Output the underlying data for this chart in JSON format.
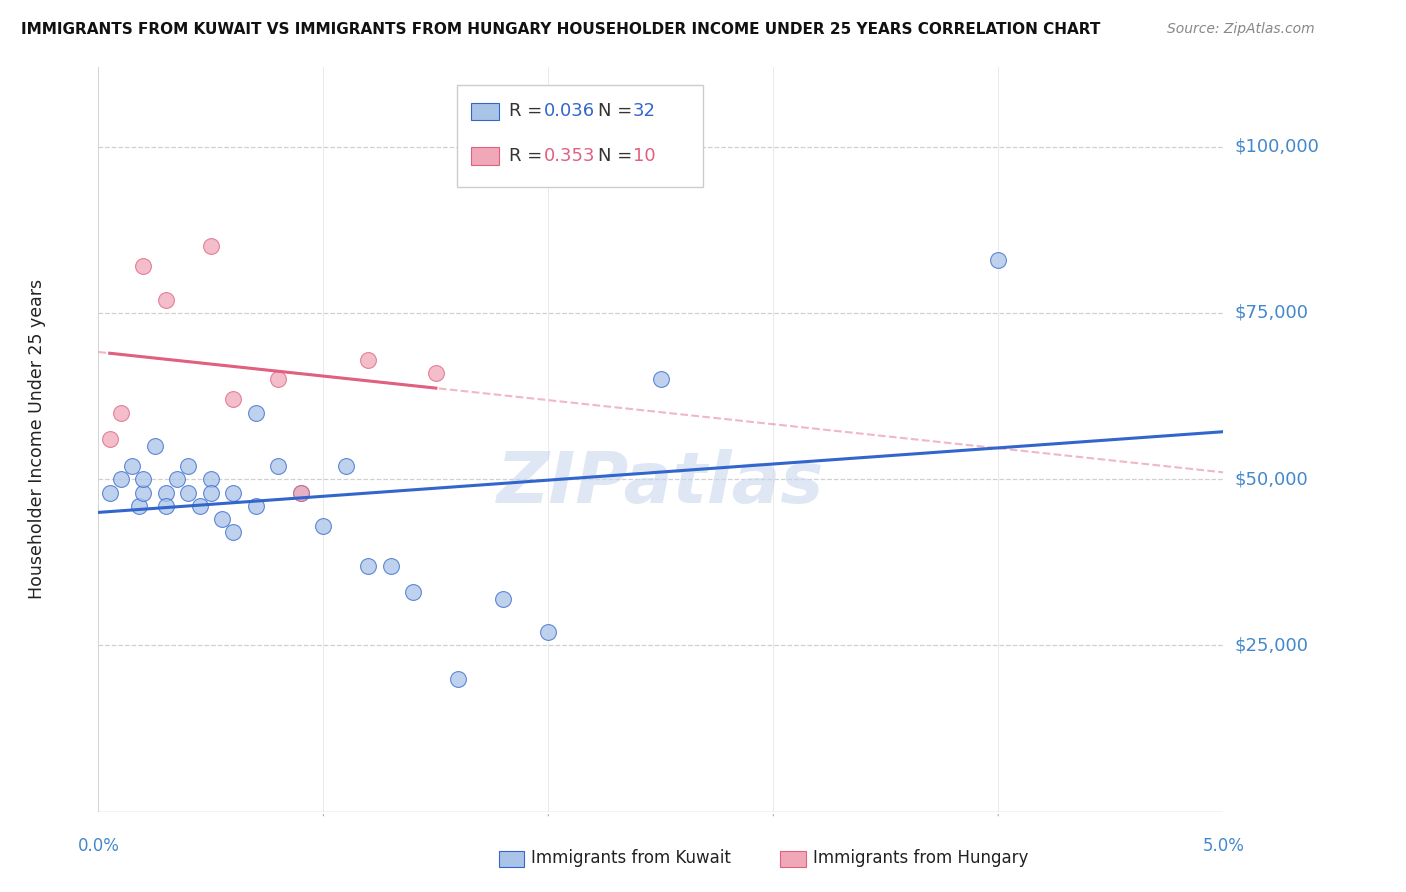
{
  "title": "IMMIGRANTS FROM KUWAIT VS IMMIGRANTS FROM HUNGARY HOUSEHOLDER INCOME UNDER 25 YEARS CORRELATION CHART",
  "source": "Source: ZipAtlas.com",
  "ylabel": "Householder Income Under 25 years",
  "xlim": [
    0.0,
    0.05
  ],
  "ylim": [
    0,
    112000
  ],
  "background_color": "#ffffff",
  "kuwait_color": "#aac4e8",
  "hungary_color": "#f0a8b8",
  "kuwait_line_color": "#3366cc",
  "hungary_line_color": "#e06080",
  "R_kuwait": 0.036,
  "N_kuwait": 32,
  "R_hungary": 0.353,
  "N_hungary": 10,
  "kuwait_scatter_x": [
    0.0005,
    0.001,
    0.0015,
    0.0018,
    0.002,
    0.002,
    0.0025,
    0.003,
    0.003,
    0.0035,
    0.004,
    0.004,
    0.0045,
    0.005,
    0.005,
    0.0055,
    0.006,
    0.006,
    0.007,
    0.007,
    0.008,
    0.009,
    0.01,
    0.011,
    0.012,
    0.013,
    0.014,
    0.016,
    0.018,
    0.02,
    0.025,
    0.04
  ],
  "kuwait_scatter_y": [
    48000,
    50000,
    52000,
    46000,
    48000,
    50000,
    55000,
    48000,
    46000,
    50000,
    48000,
    52000,
    46000,
    50000,
    48000,
    44000,
    42000,
    48000,
    60000,
    46000,
    52000,
    48000,
    43000,
    52000,
    37000,
    37000,
    33000,
    20000,
    32000,
    27000,
    65000,
    83000
  ],
  "hungary_scatter_x": [
    0.0005,
    0.001,
    0.002,
    0.003,
    0.005,
    0.006,
    0.008,
    0.009,
    0.012,
    0.015
  ],
  "hungary_scatter_y": [
    56000,
    60000,
    82000,
    77000,
    85000,
    62000,
    65000,
    48000,
    68000,
    66000
  ],
  "grid_color": "#d0d0d0",
  "tick_color": "#4488cc",
  "marker_size": 130,
  "ytick_vals": [
    25000,
    50000,
    75000,
    100000
  ],
  "ytick_labels": [
    "$25,000",
    "$50,000",
    "$75,000",
    "$100,000"
  ]
}
